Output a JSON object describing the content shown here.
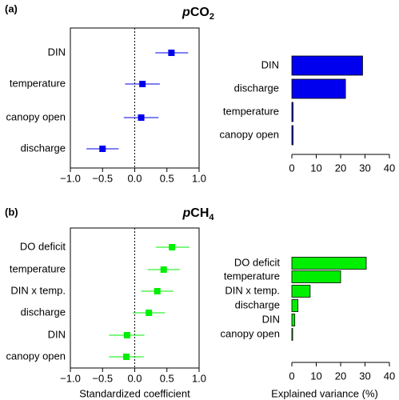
{
  "chart_data": [
    {
      "type": "scatter",
      "panel_label": "(a)",
      "title_main": "p",
      "title_rest": "CO",
      "title_sub": "2",
      "subtype": "coefficient-plot",
      "categories": [
        "DIN",
        "temperature",
        "canopy open",
        "discharge"
      ],
      "estimate": [
        0.57,
        0.12,
        0.1,
        -0.5
      ],
      "ci_low": [
        0.32,
        -0.15,
        -0.17,
        -0.75
      ],
      "ci_high": [
        0.83,
        0.39,
        0.37,
        -0.25
      ],
      "xlim": [
        -1.0,
        1.0
      ],
      "xticks": [
        "−1.0",
        "−0.5",
        "0.0",
        "0.5",
        "1.0"
      ],
      "xlabel": "",
      "color": "#0000ee"
    },
    {
      "type": "bar",
      "panel_label": "",
      "categories": [
        "DIN",
        "discharge",
        "temperature",
        "canopy open"
      ],
      "values": [
        29,
        22,
        0.5,
        0.5
      ],
      "xlim": [
        0,
        40
      ],
      "xticks": [
        "0",
        "10",
        "20",
        "30",
        "40"
      ],
      "xlabel": "",
      "color": "#0000ee"
    },
    {
      "type": "scatter",
      "panel_label": "(b)",
      "title_main": "p",
      "title_rest": "CH",
      "title_sub": "4",
      "subtype": "coefficient-plot",
      "categories": [
        "DO deficit",
        "temperature",
        "DIN x temp.",
        "discharge",
        "DIN",
        "canopy open"
      ],
      "estimate": [
        0.58,
        0.45,
        0.35,
        0.22,
        -0.12,
        -0.13
      ],
      "ci_low": [
        0.33,
        0.2,
        0.1,
        -0.03,
        -0.4,
        -0.4
      ],
      "ci_high": [
        0.85,
        0.7,
        0.6,
        0.47,
        0.15,
        0.14
      ],
      "xlim": [
        -1.0,
        1.0
      ],
      "xticks": [
        "−1.0",
        "−0.5",
        "0.0",
        "0.5",
        "1.0"
      ],
      "xlabel": "Standardized coefficient",
      "color": "#00ee00"
    },
    {
      "type": "bar",
      "panel_label": "",
      "categories": [
        "DO deficit",
        "temperature",
        "DIN x temp.",
        "discharge",
        "DIN",
        "canopy open"
      ],
      "values": [
        30.5,
        20,
        7.5,
        2.5,
        1.2,
        0.3
      ],
      "xlim": [
        0,
        40
      ],
      "xticks": [
        "0",
        "10",
        "20",
        "30",
        "40"
      ],
      "xlabel": "Explained variance (%)",
      "color": "#00ee00"
    }
  ]
}
